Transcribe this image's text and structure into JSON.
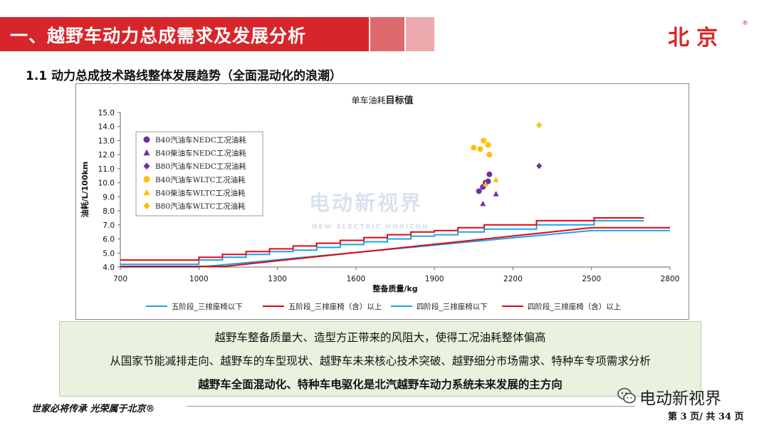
{
  "header": {
    "title": "一、越野车动力总成需求及发展分析",
    "logo": "北京",
    "logo_mark": "®"
  },
  "section": {
    "title": "1.1 动力总成技术路线整体发展趋势（全面混动化的浪潮）"
  },
  "chart_data": {
    "type": "scatter",
    "title_plain": "单车油耗",
    "title_bold": "目标值",
    "xlabel": "整备质量/kg",
    "ylabel": "油耗/L/100km",
    "xlim": [
      700,
      2800
    ],
    "ylim": [
      4.0,
      15.0
    ],
    "xticks": [
      700,
      1000,
      1300,
      1600,
      1900,
      2200,
      2500,
      2800
    ],
    "yticks": [
      4.0,
      5.0,
      6.0,
      7.0,
      8.0,
      9.0,
      10.0,
      11.0,
      12.0,
      13.0,
      14.0,
      15.0
    ],
    "grid": false,
    "legend_points_position": "upper-left",
    "legend_lines_position": "bottom",
    "point_series": [
      {
        "name": "B40汽油车NEDC工况油耗",
        "marker": "circle",
        "color": "#7030a0",
        "points": [
          [
            2070,
            9.4
          ],
          [
            2085,
            9.7
          ],
          [
            2095,
            10.0
          ],
          [
            2105,
            10.1
          ],
          [
            2110,
            10.6
          ]
        ]
      },
      {
        "name": "B40柴油车NEDC工况油耗",
        "marker": "triangle",
        "color": "#7030a0",
        "points": [
          [
            2085,
            8.5
          ],
          [
            2135,
            9.2
          ]
        ]
      },
      {
        "name": "B80汽油车NEDC工况油耗",
        "marker": "diamond",
        "color": "#7030a0",
        "points": [
          [
            2300,
            11.2
          ]
        ]
      },
      {
        "name": "B40汽油车WLTC工况油耗",
        "marker": "circle",
        "color": "#ffc000",
        "points": [
          [
            2050,
            12.5
          ],
          [
            2075,
            12.4
          ],
          [
            2088,
            13.0
          ],
          [
            2105,
            12.7
          ],
          [
            2110,
            12.0
          ]
        ]
      },
      {
        "name": "B40柴油车WLTC工况油耗",
        "marker": "triangle",
        "color": "#ffc000",
        "points": [
          [
            2095,
            9.9
          ],
          [
            2135,
            10.2
          ]
        ]
      },
      {
        "name": "B80汽油车WLTC工况油耗",
        "marker": "diamond",
        "color": "#ffc000",
        "points": [
          [
            2300,
            14.1
          ]
        ]
      }
    ],
    "line_series": [
      {
        "name": "五阶段_三排座椅以下",
        "color": "#19a5e3",
        "kind": "sloped",
        "points": [
          [
            700,
            4.0
          ],
          [
            1000,
            4.0
          ],
          [
            2500,
            6.6
          ],
          [
            2800,
            6.6
          ]
        ]
      },
      {
        "name": "五阶段_三排座椅（含）以上",
        "color": "#e30613",
        "kind": "sloped",
        "points": [
          [
            700,
            4.05
          ],
          [
            1100,
            4.05
          ],
          [
            2500,
            6.8
          ],
          [
            2800,
            6.8
          ]
        ]
      },
      {
        "name": "四阶段_三排座椅以下",
        "color": "#19a5e3",
        "kind": "step",
        "points": [
          [
            700,
            4.2
          ],
          [
            1000,
            4.2
          ],
          [
            1000,
            4.5
          ],
          [
            1090,
            4.5
          ],
          [
            1090,
            4.7
          ],
          [
            1180,
            4.7
          ],
          [
            1180,
            4.9
          ],
          [
            1270,
            4.9
          ],
          [
            1270,
            5.1
          ],
          [
            1360,
            5.1
          ],
          [
            1360,
            5.2
          ],
          [
            1450,
            5.2
          ],
          [
            1450,
            5.4
          ],
          [
            1540,
            5.4
          ],
          [
            1540,
            5.6
          ],
          [
            1630,
            5.6
          ],
          [
            1630,
            5.8
          ],
          [
            1720,
            5.8
          ],
          [
            1720,
            6.0
          ],
          [
            1810,
            6.0
          ],
          [
            1810,
            6.2
          ],
          [
            1900,
            6.2
          ],
          [
            1900,
            6.3
          ],
          [
            1990,
            6.3
          ],
          [
            1990,
            6.5
          ],
          [
            2090,
            6.5
          ],
          [
            2090,
            6.7
          ],
          [
            2290,
            6.7
          ],
          [
            2290,
            7.0
          ],
          [
            2510,
            7.0
          ],
          [
            2510,
            7.3
          ],
          [
            2700,
            7.3
          ]
        ]
      },
      {
        "name": "四阶段_三排座椅（含）以上",
        "color": "#e30613",
        "kind": "step",
        "points": [
          [
            700,
            4.5
          ],
          [
            1000,
            4.5
          ],
          [
            1000,
            4.7
          ],
          [
            1090,
            4.7
          ],
          [
            1090,
            4.9
          ],
          [
            1180,
            4.9
          ],
          [
            1180,
            5.1
          ],
          [
            1270,
            5.1
          ],
          [
            1270,
            5.3
          ],
          [
            1360,
            5.3
          ],
          [
            1360,
            5.5
          ],
          [
            1450,
            5.5
          ],
          [
            1450,
            5.7
          ],
          [
            1540,
            5.7
          ],
          [
            1540,
            5.9
          ],
          [
            1630,
            5.9
          ],
          [
            1630,
            6.1
          ],
          [
            1720,
            6.1
          ],
          [
            1720,
            6.3
          ],
          [
            1810,
            6.3
          ],
          [
            1810,
            6.5
          ],
          [
            1900,
            6.5
          ],
          [
            1900,
            6.6
          ],
          [
            1990,
            6.6
          ],
          [
            1990,
            6.8
          ],
          [
            2090,
            6.8
          ],
          [
            2090,
            7.0
          ],
          [
            2290,
            7.0
          ],
          [
            2290,
            7.3
          ],
          [
            2510,
            7.3
          ],
          [
            2510,
            7.5
          ],
          [
            2700,
            7.5
          ]
        ]
      }
    ]
  },
  "watermark": {
    "text": "电动新视界",
    "sub": "NEW ELECTRIC HORIZON"
  },
  "summary": {
    "line1": "越野车整备质量大、造型方正带来的风阻大，使得工况油耗整体偏高",
    "line2": "从国家节能减排走向、越野车的车型现状、越野车未来核心技术突破、越野细分市场需求、特种车专项需求分析",
    "line3": "越野车全面混动化、特种车电驱化是北汽越野车动力系统未来发展的主方向"
  },
  "footer": {
    "slogan": "世家必将传承  光荣属于北京®",
    "brand": "电动新视界",
    "page": "第 3 页/ 共 34 页"
  }
}
